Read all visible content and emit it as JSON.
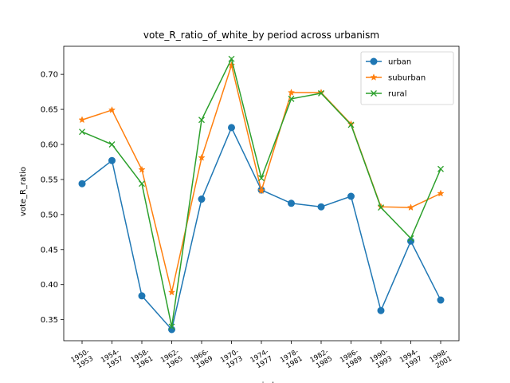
{
  "chart_data": {
    "type": "line",
    "title": "vote_R_ratio_of_white_by period across urbanism",
    "xlabel": "period",
    "ylabel": "vote_R_ratio",
    "categories": [
      "1950-\n1953",
      "1954-\n1957",
      "1958-\n1961",
      "1962-\n1965",
      "1966-\n1969",
      "1970-\n1973",
      "1974-\n1977",
      "1978-\n1981",
      "1982-\n1985",
      "1986-\n1989",
      "1990-\n1993",
      "1994-\n1997",
      "1998-\n2001"
    ],
    "ylim": [
      0.32,
      0.74
    ],
    "yticks": [
      0.35,
      0.4,
      0.45,
      0.5,
      0.55,
      0.6,
      0.65,
      0.7
    ],
    "ytick_labels": [
      "0.35",
      "0.40",
      "0.45",
      "0.50",
      "0.55",
      "0.60",
      "0.65",
      "0.70"
    ],
    "grid": false,
    "legend_position": "upper right",
    "series": [
      {
        "name": "urban",
        "color": "#1f77b4",
        "marker": "circle",
        "values": [
          0.544,
          0.577,
          0.384,
          0.336,
          0.522,
          0.624,
          0.535,
          0.516,
          0.511,
          0.526,
          0.363,
          0.462,
          0.378
        ]
      },
      {
        "name": "suburban",
        "color": "#ff7f0e",
        "marker": "star",
        "values": [
          0.635,
          0.649,
          0.564,
          0.389,
          0.581,
          0.713,
          0.534,
          0.674,
          0.674,
          0.629,
          0.511,
          0.51,
          0.53
        ]
      },
      {
        "name": "rural",
        "color": "#2ca02c",
        "marker": "x",
        "values": [
          0.618,
          0.6,
          0.544,
          0.34,
          0.635,
          0.722,
          0.552,
          0.665,
          0.673,
          0.628,
          0.51,
          0.466,
          0.565
        ]
      }
    ]
  }
}
